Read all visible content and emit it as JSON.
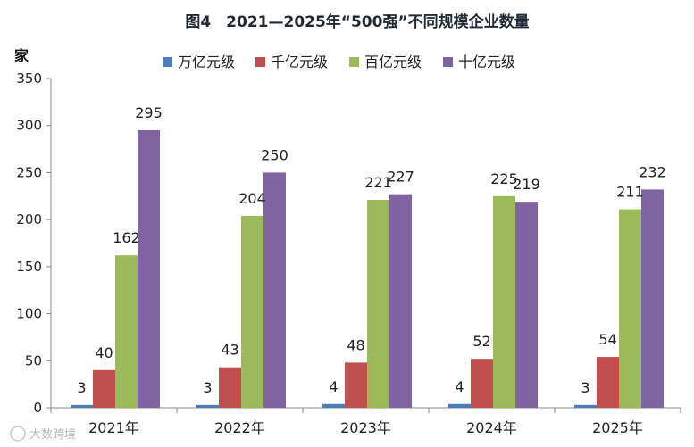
{
  "chart_data": {
    "type": "bar",
    "title": "图4　2021—2025年“500强”不同规模企业数量",
    "ylabel": "家",
    "xlabel": "",
    "categories": [
      "2021年",
      "2022年",
      "2023年",
      "2024年",
      "2025年"
    ],
    "series": [
      {
        "name": "万亿元级",
        "color": "#4a7ebb",
        "values": [
          3,
          3,
          4,
          4,
          3
        ]
      },
      {
        "name": "千亿元级",
        "color": "#c0504d",
        "values": [
          40,
          43,
          48,
          52,
          54
        ]
      },
      {
        "name": "百亿元级",
        "color": "#9bbb59",
        "values": [
          162,
          204,
          221,
          225,
          211
        ]
      },
      {
        "name": "十亿元级",
        "color": "#8064a2",
        "values": [
          295,
          250,
          227,
          219,
          232
        ]
      }
    ],
    "ylim": [
      0,
      350
    ],
    "yticks": [
      0,
      50,
      100,
      150,
      200,
      250,
      300,
      350
    ],
    "grid": false,
    "legend_position": "top"
  },
  "watermark": "大数跨境"
}
